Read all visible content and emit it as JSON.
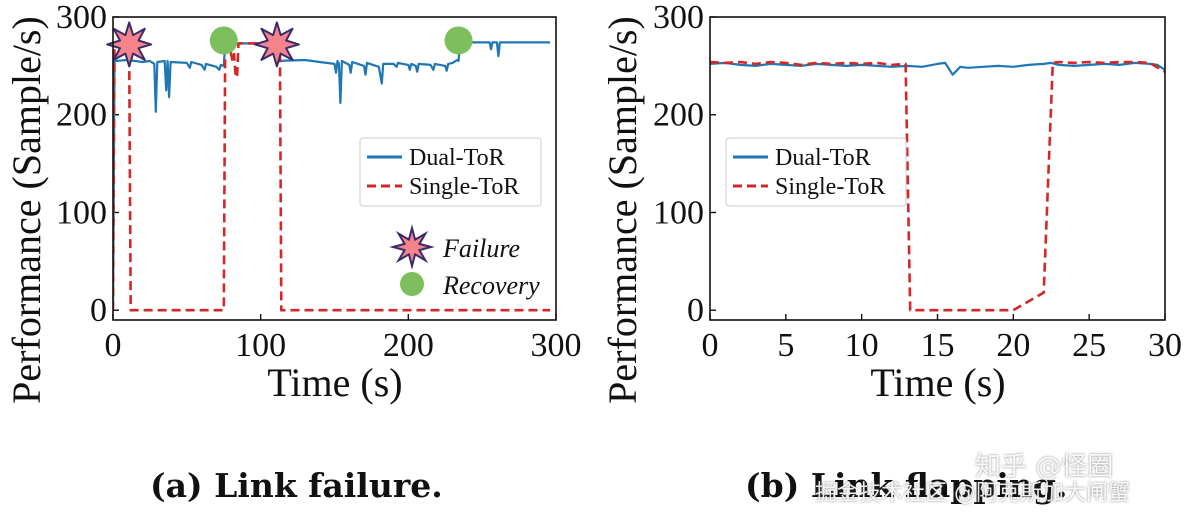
{
  "chart_data": [
    {
      "type": "line",
      "panel": "a",
      "caption": "(a) Link failure.",
      "xlabel": "Time (s)",
      "ylabel": "Performance (Sample/s)",
      "xlim": [
        0,
        300
      ],
      "ylim": [
        -10,
        300
      ],
      "xticks": [
        0,
        100,
        200,
        300
      ],
      "yticks": [
        0,
        100,
        200,
        300
      ],
      "legend": {
        "position": "center-right",
        "entries": [
          "Dual-ToR",
          "Single-ToR"
        ]
      },
      "marker_legend": {
        "failure_label": "Failure",
        "recovery_label": "Recovery"
      },
      "series": [
        {
          "name": "Dual-ToR",
          "color": "#1f77b4",
          "style": "solid",
          "points": [
            [
              0,
              0
            ],
            [
              1,
              255
            ],
            [
              10,
              256
            ],
            [
              20,
              254
            ],
            [
              25,
              255
            ],
            [
              28,
              252
            ],
            [
              29,
              203
            ],
            [
              30,
              254
            ],
            [
              35,
              255
            ],
            [
              36,
              225
            ],
            [
              37,
              255
            ],
            [
              38,
              218
            ],
            [
              39,
              254
            ],
            [
              50,
              253
            ],
            [
              52,
              248
            ],
            [
              53,
              254
            ],
            [
              60,
              251
            ],
            [
              62,
              246
            ],
            [
              63,
              252
            ],
            [
              70,
              249
            ],
            [
              72,
              246
            ],
            [
              73,
              251
            ],
            [
              75,
              250
            ],
            [
              76,
              274
            ],
            [
              80,
              273
            ],
            [
              100,
              273
            ],
            [
              109,
              273
            ],
            [
              110,
              255
            ],
            [
              130,
              256
            ],
            [
              140,
              254
            ],
            [
              150,
              252
            ],
            [
              151,
              243
            ],
            [
              152,
              255
            ],
            [
              153,
              252
            ],
            [
              154,
              212
            ],
            [
              155,
              255
            ],
            [
              160,
              251
            ],
            [
              161,
              243
            ],
            [
              162,
              254
            ],
            [
              170,
              250
            ],
            [
              171,
              241
            ],
            [
              172,
              253
            ],
            [
              180,
              249
            ],
            [
              182,
              232
            ],
            [
              183,
              252
            ],
            [
              190,
              252
            ],
            [
              192,
              249
            ],
            [
              193,
              253
            ],
            [
              200,
              251
            ],
            [
              201,
              246
            ],
            [
              202,
              252
            ],
            [
              205,
              250
            ],
            [
              206,
              244
            ],
            [
              207,
              252
            ],
            [
              215,
              251
            ],
            [
              217,
              246
            ],
            [
              218,
              252
            ],
            [
              225,
              250
            ],
            [
              226,
              245
            ],
            [
              227,
              252
            ],
            [
              230,
              253
            ],
            [
              233,
              256
            ],
            [
              234,
              255
            ],
            [
              235,
              273
            ],
            [
              240,
              274
            ],
            [
              250,
              274
            ],
            [
              255,
              274
            ],
            [
              256,
              267
            ],
            [
              257,
              274
            ],
            [
              260,
              274
            ],
            [
              261,
              260
            ],
            [
              262,
              274
            ],
            [
              270,
              274
            ],
            [
              290,
              274
            ],
            [
              296,
              274
            ]
          ]
        },
        {
          "name": "Single-ToR",
          "color": "#d62728",
          "style": "dashed",
          "points": [
            [
              0,
              0
            ],
            [
              1,
              272
            ],
            [
              9,
              271
            ],
            [
              10,
              260
            ],
            [
              11,
              262
            ],
            [
              12,
              0
            ],
            [
              75,
              0
            ],
            [
              76,
              275
            ],
            [
              79,
              275
            ],
            [
              80,
              262
            ],
            [
              81,
              255
            ],
            [
              82,
              262
            ],
            [
              83,
              240
            ],
            [
              84,
              238
            ],
            [
              85,
              273
            ],
            [
              113,
              273
            ],
            [
              114,
              0
            ],
            [
              296,
              0
            ]
          ]
        }
      ],
      "failures": [
        [
          11,
          272
        ],
        [
          111,
          272
        ]
      ],
      "recoveries": [
        [
          75,
          276
        ],
        [
          234,
          276
        ]
      ]
    },
    {
      "type": "line",
      "panel": "b",
      "caption": "(b) Link flapping.",
      "xlabel": "Time (s)",
      "ylabel": "Performance (Sample/s)",
      "xlim": [
        0,
        30
      ],
      "ylim": [
        -10,
        300
      ],
      "xticks": [
        0,
        5,
        10,
        15,
        20,
        25,
        30
      ],
      "yticks": [
        0,
        100,
        200,
        300
      ],
      "legend": {
        "position": "upper-left",
        "entries": [
          "Dual-ToR",
          "Single-ToR"
        ]
      },
      "series": [
        {
          "name": "Dual-ToR",
          "color": "#1f77b4",
          "style": "solid",
          "points": [
            [
              0,
              252
            ],
            [
              1,
              253
            ],
            [
              2,
              251
            ],
            [
              3,
              250
            ],
            [
              4,
              252
            ],
            [
              5,
              251
            ],
            [
              6,
              250
            ],
            [
              7,
              252
            ],
            [
              8,
              251
            ],
            [
              9,
              250
            ],
            [
              10,
              251
            ],
            [
              11,
              250
            ],
            [
              12,
              249
            ],
            [
              13,
              250
            ],
            [
              14,
              249
            ],
            [
              15,
              252
            ],
            [
              15.5,
              253
            ],
            [
              16,
              241
            ],
            [
              16.5,
              249
            ],
            [
              17,
              248
            ],
            [
              18,
              249
            ],
            [
              19,
              250
            ],
            [
              20,
              249
            ],
            [
              21,
              251
            ],
            [
              22,
              252
            ],
            [
              22.5,
              253
            ],
            [
              23,
              251
            ],
            [
              24,
              250
            ],
            [
              25,
              251
            ],
            [
              26,
              252
            ],
            [
              27,
              251
            ],
            [
              28,
              253
            ],
            [
              29,
              252
            ],
            [
              29.5,
              251
            ],
            [
              30,
              246
            ]
          ]
        },
        {
          "name": "Single-ToR",
          "color": "#d62728",
          "style": "dashed",
          "points": [
            [
              0,
              254
            ],
            [
              1,
              253
            ],
            [
              2,
              254
            ],
            [
              3,
              252
            ],
            [
              4,
              254
            ],
            [
              5,
              253
            ],
            [
              6,
              251
            ],
            [
              7,
              253
            ],
            [
              8,
              252
            ],
            [
              9,
              253
            ],
            [
              10,
              252
            ],
            [
              11,
              253
            ],
            [
              12,
              251
            ],
            [
              12.9,
              252
            ],
            [
              13.2,
              0
            ],
            [
              20,
              0
            ],
            [
              22,
              18
            ],
            [
              22.6,
              253
            ],
            [
              23,
              254
            ],
            [
              24,
              253
            ],
            [
              25,
              254
            ],
            [
              26,
              253
            ],
            [
              27,
              254
            ],
            [
              28,
              254
            ],
            [
              29,
              253
            ],
            [
              30,
              244
            ]
          ]
        }
      ]
    }
  ],
  "captions": {
    "a": "(a) Link failure.",
    "b": "(b) Link flapping."
  },
  "watermark": "知乎 @怪圈",
  "watermark2": "掘金技术社区 @阿克斯加大闸蟹",
  "colors": {
    "dual": "#1f77b4",
    "single": "#d62728",
    "failure_fill": "#f4838a",
    "failure_stroke": "#3b2a6b",
    "recovery": "#7cbf5c"
  }
}
